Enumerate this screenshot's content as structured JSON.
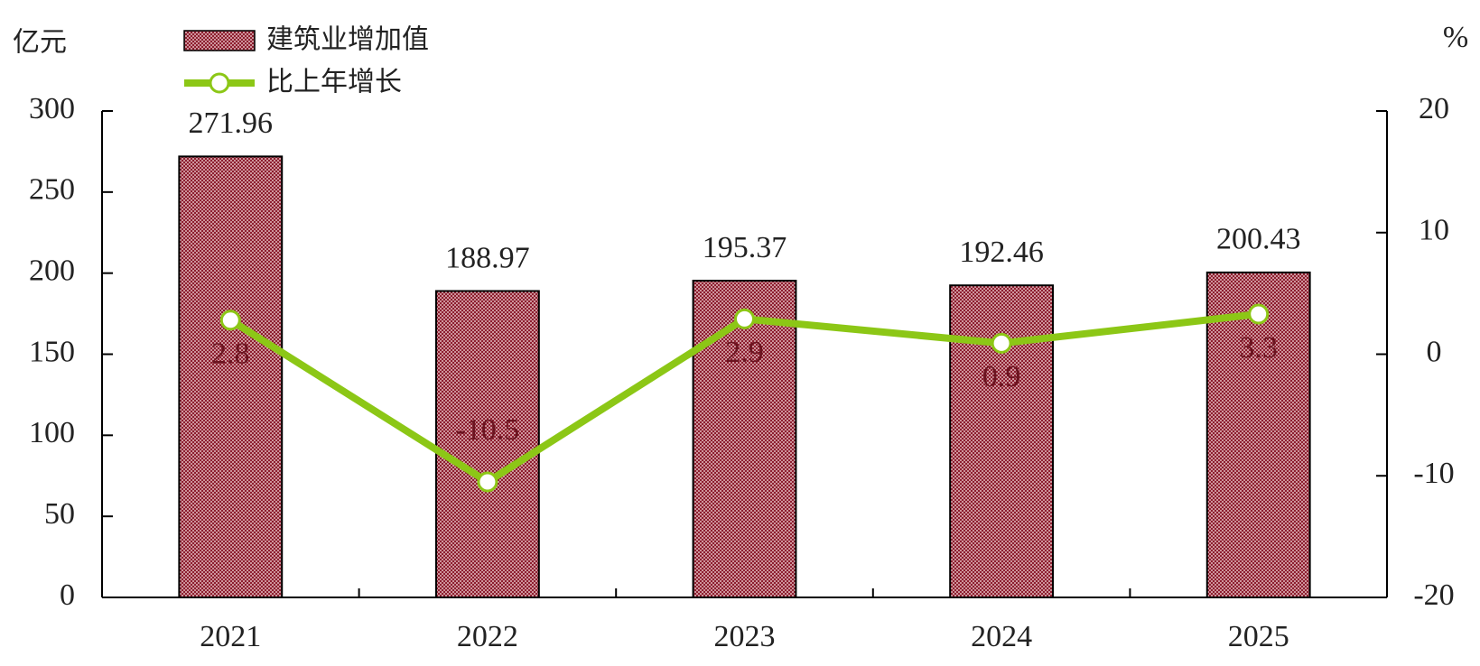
{
  "chart_data": {
    "type": "bar",
    "y_label": "亿元",
    "y2_label": "%",
    "categories": [
      "2021",
      "2022",
      "2023",
      "2024",
      "2025"
    ],
    "series": [
      {
        "name": "建筑业增加值",
        "type": "bar",
        "color": "#8b1a2b",
        "values": [
          271.96,
          188.97,
          195.37,
          192.46,
          200.43
        ]
      },
      {
        "name": "比上年增长",
        "type": "line",
        "axis": "y2",
        "color": "#8cc716",
        "values": [
          2.8,
          -10.5,
          2.9,
          0.9,
          3.3
        ]
      }
    ],
    "ylim": [
      0,
      300
    ],
    "yticks": [
      0,
      50,
      100,
      150,
      200,
      250,
      300
    ],
    "y2lim": [
      -20,
      20
    ],
    "y2ticks": [
      -20,
      -10,
      0,
      10,
      20
    ]
  }
}
